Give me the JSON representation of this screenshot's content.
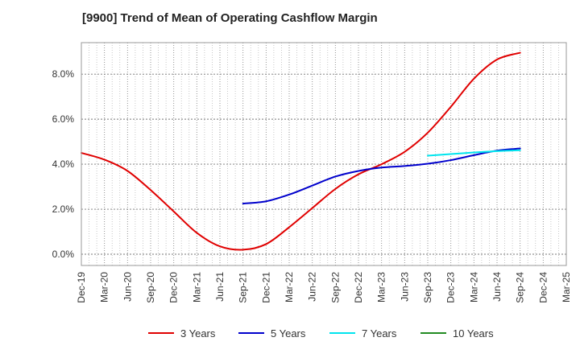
{
  "chart_data": {
    "type": "line",
    "title": "[9900]  Trend of Mean of Operating Cashflow Margin",
    "xlabel": "",
    "ylabel": "",
    "grid": true,
    "legend_position": "bottom-center",
    "x_ticks": [
      "Dec-19",
      "Mar-20",
      "Jun-20",
      "Sep-20",
      "Dec-20",
      "Mar-21",
      "Jun-21",
      "Sep-21",
      "Dec-21",
      "Mar-22",
      "Jun-22",
      "Sep-22",
      "Dec-22",
      "Mar-23",
      "Jun-23",
      "Sep-23",
      "Dec-23",
      "Mar-24",
      "Jun-24",
      "Sep-24",
      "Dec-24",
      "Mar-25"
    ],
    "y_ticks": [
      "0.0%",
      "2.0%",
      "4.0%",
      "6.0%",
      "8.0%"
    ],
    "y_tick_values": [
      0,
      2,
      4,
      6,
      8
    ],
    "ylim": [
      -0.5,
      9.4
    ],
    "series": [
      {
        "name": "3 Years",
        "color": "#e00000",
        "values": [
          4.5,
          4.2,
          3.7,
          2.85,
          1.9,
          0.95,
          0.35,
          0.2,
          0.45,
          1.2,
          2.05,
          2.9,
          3.55,
          4.0,
          4.55,
          5.4,
          6.55,
          7.8,
          8.65,
          8.95,
          null,
          null
        ]
      },
      {
        "name": "5 Years",
        "color": "#0000cc",
        "values": [
          null,
          null,
          null,
          null,
          null,
          null,
          null,
          2.25,
          2.35,
          2.65,
          3.05,
          3.45,
          3.7,
          3.85,
          3.92,
          4.02,
          4.18,
          4.4,
          4.6,
          4.7,
          null,
          null
        ]
      },
      {
        "name": "7 Years",
        "color": "#00e5ee",
        "values": [
          null,
          null,
          null,
          null,
          null,
          null,
          null,
          null,
          null,
          null,
          null,
          null,
          null,
          null,
          null,
          4.38,
          4.45,
          4.52,
          4.58,
          4.62,
          null,
          null
        ]
      },
      {
        "name": "10 Years",
        "color": "#228b22",
        "values": [
          null,
          null,
          null,
          null,
          null,
          null,
          null,
          null,
          null,
          null,
          null,
          null,
          null,
          null,
          null,
          null,
          null,
          null,
          null,
          null,
          null,
          null
        ]
      }
    ]
  }
}
